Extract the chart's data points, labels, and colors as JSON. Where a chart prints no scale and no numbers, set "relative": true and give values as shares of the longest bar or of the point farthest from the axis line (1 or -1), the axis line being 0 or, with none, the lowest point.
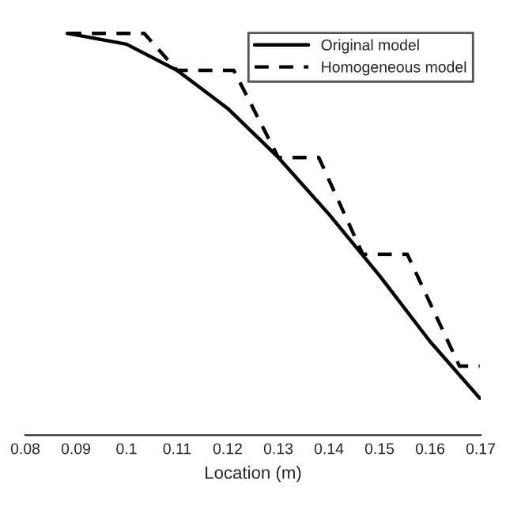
{
  "chart_data": {
    "type": "line",
    "relative": true,
    "xlabel": "Location (m)",
    "xlim": [
      0.08,
      0.17
    ],
    "xticks": [
      0.08,
      0.09,
      0.1,
      0.11,
      0.12,
      0.13,
      0.14,
      0.15,
      0.16,
      0.17
    ],
    "legend": "top right",
    "grid": false,
    "tick_labels": "x",
    "series": [
      {
        "name": "Original model",
        "color": "#000000",
        "line_style": "solid",
        "x": [
          0.0883,
          0.1,
          0.11,
          0.12,
          0.13,
          0.14,
          0.15,
          0.16,
          0.1698
        ],
        "values": [
          1.0,
          0.973,
          0.908,
          0.813,
          0.691,
          0.55,
          0.397,
          0.233,
          0.092
        ]
      },
      {
        "name": "Homogeneous model",
        "color": "#000000",
        "line_style": "dashed",
        "x": [
          0.0883,
          0.1035,
          0.11,
          0.1212,
          0.13,
          0.138,
          0.1467,
          0.1555,
          0.1658,
          0.1698
        ],
        "values": [
          1.0,
          1.0,
          0.908,
          0.908,
          0.691,
          0.691,
          0.45,
          0.45,
          0.172,
          0.172
        ]
      }
    ]
  }
}
